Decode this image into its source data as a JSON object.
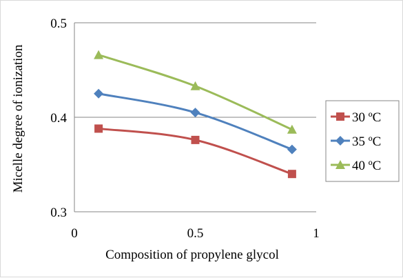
{
  "chart_data": {
    "type": "line",
    "title": "",
    "xlabel": "Composition of propylene glycol",
    "ylabel": "Micelle degree of ionization",
    "xlim": [
      0,
      1
    ],
    "ylim": [
      0.3,
      0.5
    ],
    "x_ticks": [
      "0",
      "0.5",
      "1"
    ],
    "y_ticks": [
      "0.3",
      "0.4",
      "0.5"
    ],
    "x_tick_values": [
      0,
      0.5,
      1
    ],
    "y_tick_values": [
      0.3,
      0.4,
      0.5
    ],
    "grid": "horizontal major gridlines",
    "legend_position": "right",
    "series": [
      {
        "name": "30 ºC",
        "color": "#c0504d",
        "marker": "square",
        "x": [
          0.1,
          0.5,
          0.9
        ],
        "y": [
          0.388,
          0.376,
          0.34
        ]
      },
      {
        "name": "35 ºC",
        "color": "#4f81bd",
        "marker": "diamond",
        "x": [
          0.1,
          0.5,
          0.9
        ],
        "y": [
          0.425,
          0.405,
          0.366
        ]
      },
      {
        "name": "40 ºC",
        "color": "#9bbb59",
        "marker": "triangle",
        "x": [
          0.1,
          0.5,
          0.9
        ],
        "y": [
          0.466,
          0.433,
          0.387
        ]
      }
    ]
  }
}
